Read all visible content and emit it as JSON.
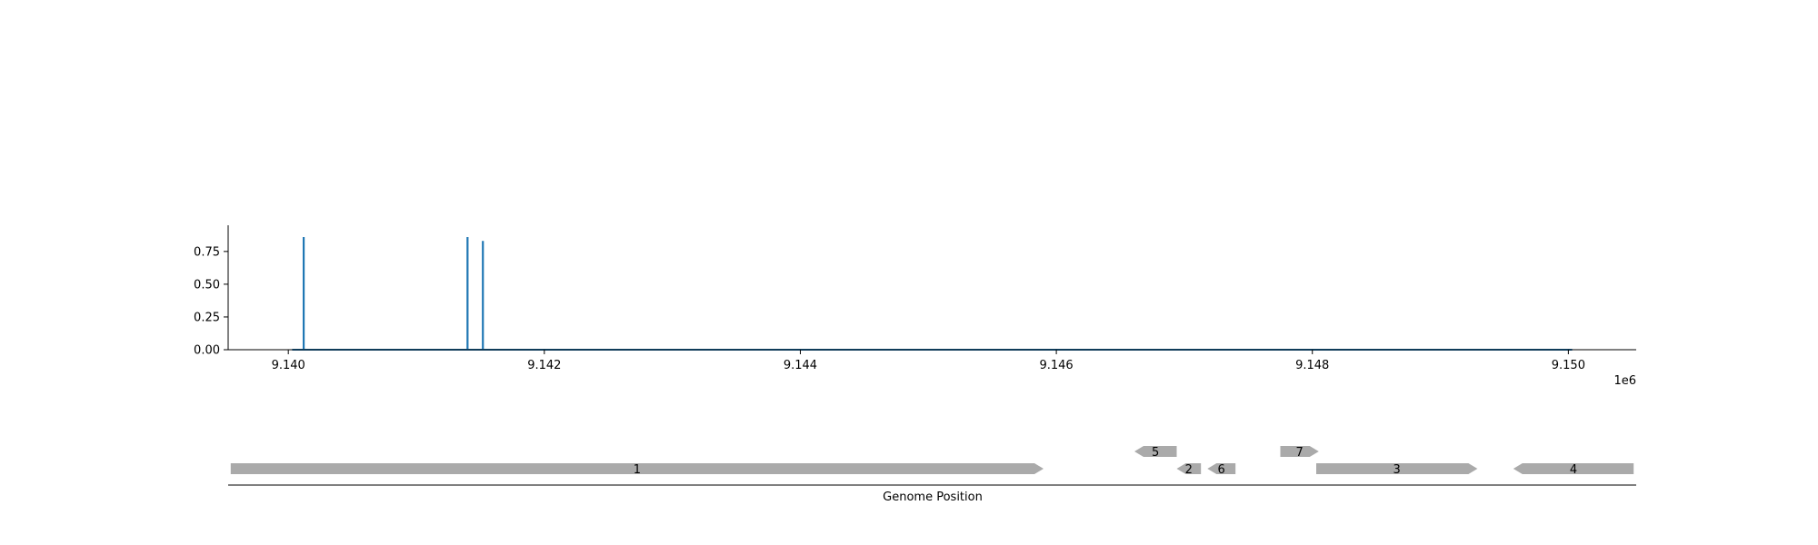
{
  "chart_data": [
    {
      "type": "line",
      "title": "",
      "xlabel": "",
      "ylabel": "",
      "x_offset_label": "1e6",
      "xlim": [
        9.13953,
        9.15053
      ],
      "ylim": [
        0,
        0.95
      ],
      "x_ticks": [
        {
          "value": 9.14,
          "label": "9.140"
        },
        {
          "value": 9.142,
          "label": "9.142"
        },
        {
          "value": 9.144,
          "label": "9.144"
        },
        {
          "value": 9.146,
          "label": "9.146"
        },
        {
          "value": 9.148,
          "label": "9.148"
        },
        {
          "value": 9.15,
          "label": "9.150"
        }
      ],
      "y_ticks": [
        {
          "value": 0.0,
          "label": "0.00"
        },
        {
          "value": 0.25,
          "label": "0.25"
        },
        {
          "value": 0.5,
          "label": "0.50"
        },
        {
          "value": 0.75,
          "label": "0.75"
        }
      ],
      "baseline": {
        "x_start": 9.14003,
        "x_end": 9.15003,
        "value": 0
      },
      "peaks": [
        {
          "x": 9.14012,
          "y": 0.86
        },
        {
          "x": 9.1414,
          "y": 0.86
        },
        {
          "x": 9.14152,
          "y": 0.83
        }
      ],
      "color": "#1f77b4",
      "grid": false,
      "legend": "none"
    },
    {
      "type": "gene-track",
      "xlabel": "Genome Position",
      "xlim": [
        9.13953,
        9.15053
      ],
      "color": "#aaaaaa",
      "features": [
        {
          "label": "1",
          "start": 9.13955,
          "end": 9.1459,
          "strand": "+",
          "row": 0
        },
        {
          "label": "2",
          "start": 9.14694,
          "end": 9.14713,
          "strand": "-",
          "row": 0
        },
        {
          "label": "6",
          "start": 9.14718,
          "end": 9.1474,
          "strand": "-",
          "row": 0
        },
        {
          "label": "3",
          "start": 9.14803,
          "end": 9.14929,
          "strand": "+",
          "row": 0
        },
        {
          "label": "4",
          "start": 9.14957,
          "end": 9.15051,
          "strand": "-",
          "row": 0
        },
        {
          "label": "5",
          "start": 9.14661,
          "end": 9.14694,
          "strand": "-",
          "row": 1
        },
        {
          "label": "7",
          "start": 9.14775,
          "end": 9.14805,
          "strand": "+",
          "row": 1
        }
      ]
    }
  ]
}
